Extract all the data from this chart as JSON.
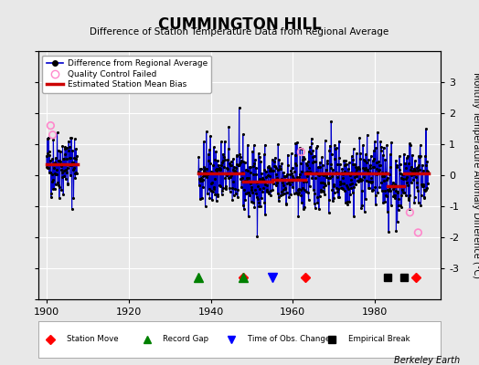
{
  "title": "CUMMINGTON HILL",
  "subtitle": "Difference of Station Temperature Data from Regional Average",
  "ylabel": "Monthly Temperature Anomaly Difference (°C)",
  "background_color": "#e8e8e8",
  "plot_bg_color": "#e8e8e8",
  "ylim": [
    -4,
    4
  ],
  "xlim": [
    1898,
    1996
  ],
  "xticks": [
    1900,
    1920,
    1940,
    1960,
    1980
  ],
  "yticks": [
    -3,
    -2,
    -1,
    0,
    1,
    2,
    3
  ],
  "grid_color": "#ffffff",
  "line_color": "#0000cc",
  "marker_color": "#000000",
  "bias_color": "#cc0000",
  "qc_color": "#ff88cc",
  "bias_segments": [
    {
      "x": [
        1900,
        1907.5
      ],
      "y": [
        0.35,
        0.35
      ]
    },
    {
      "x": [
        1937,
        1948
      ],
      "y": [
        0.05,
        0.05
      ]
    },
    {
      "x": [
        1948,
        1955
      ],
      "y": [
        -0.2,
        -0.2
      ]
    },
    {
      "x": [
        1955,
        1963
      ],
      "y": [
        -0.15,
        -0.15
      ]
    },
    {
      "x": [
        1963,
        1983
      ],
      "y": [
        0.05,
        0.05
      ]
    },
    {
      "x": [
        1983,
        1987
      ],
      "y": [
        -0.35,
        -0.35
      ]
    },
    {
      "x": [
        1987,
        1993
      ],
      "y": [
        0.05,
        0.05
      ]
    }
  ],
  "event_markers": {
    "station_moves": [
      1948,
      1963,
      1990
    ],
    "record_gaps": [
      1937,
      1948
    ],
    "obs_changes": [
      1955
    ],
    "empirical_breaks": [
      1983,
      1987
    ]
  },
  "qc_points_p1": {
    "t": [
      1901.0,
      1901.5
    ],
    "v": [
      1.6,
      1.3
    ]
  },
  "qc_points_p2": {
    "t": [
      1962.0,
      1988.5,
      1990.5
    ],
    "v": [
      0.75,
      -1.2,
      -1.85
    ]
  },
  "event_y": -3.3,
  "seed": 42
}
